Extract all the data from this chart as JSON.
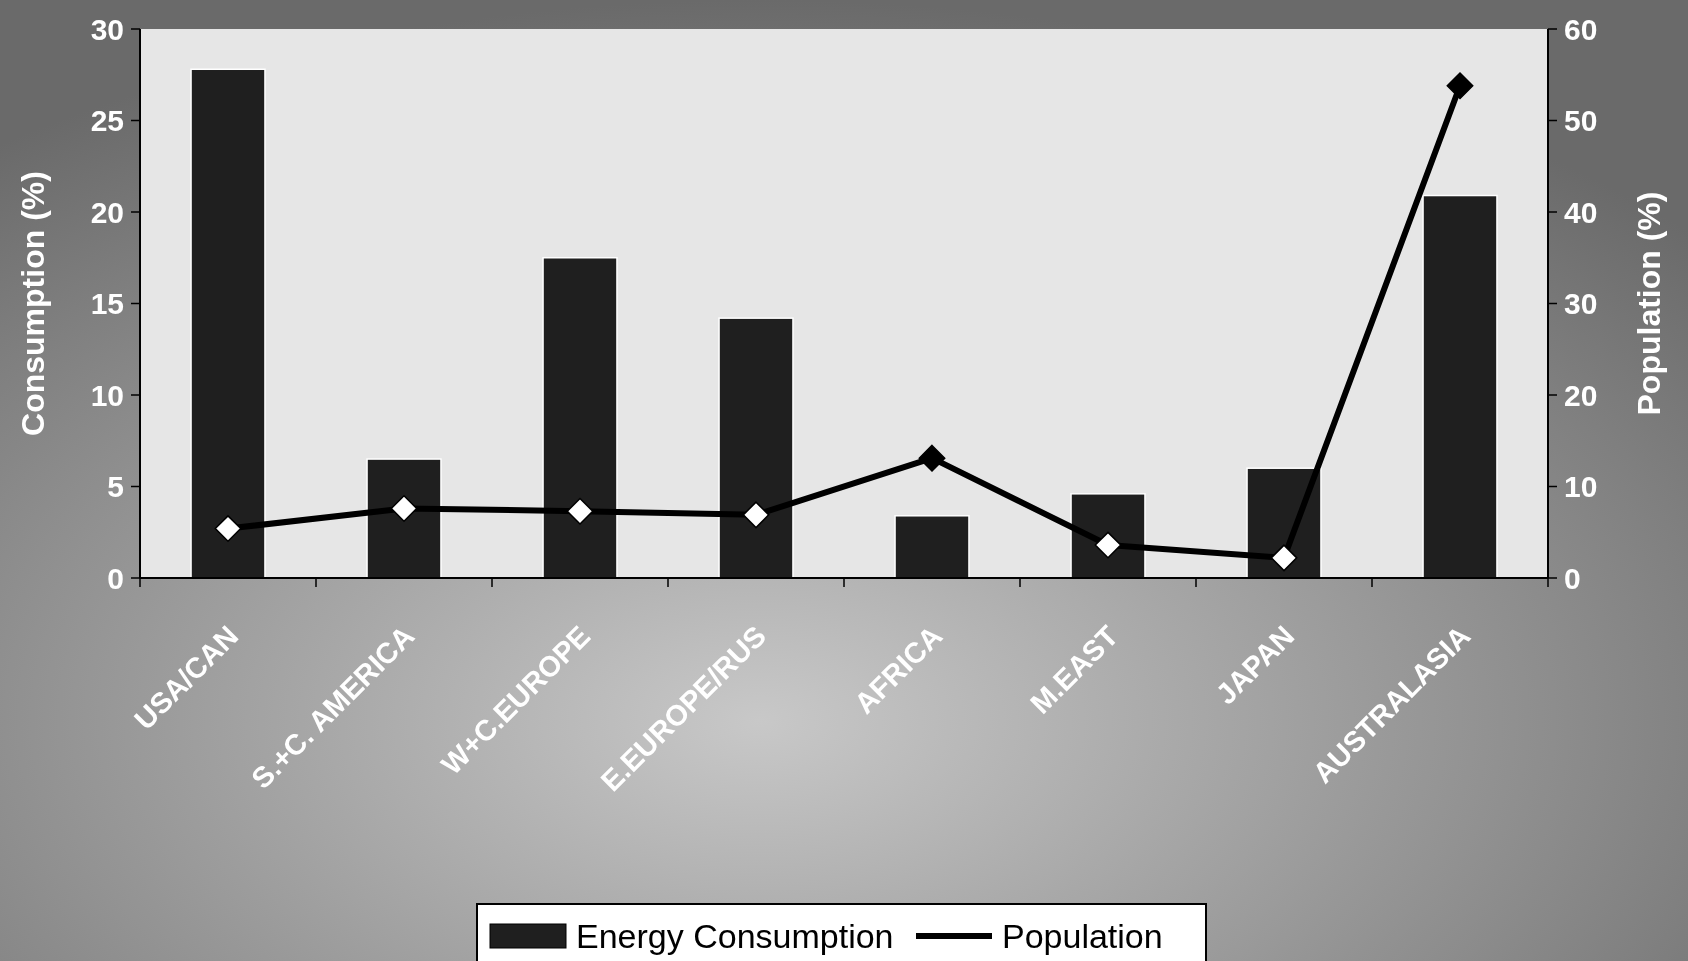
{
  "chart_data": {
    "type": "bar",
    "categories": [
      "USA/CAN",
      "S.+C. AMERICA",
      "W+C.EUROPE",
      "E.EUROPE/RUS",
      "AFRICA",
      "M.EAST",
      "JAPAN",
      "AUSTRALASIA"
    ],
    "ylabel": "Consumption (%)",
    "y2label": "Population (%)",
    "ylim": [
      0,
      30
    ],
    "yticks": [
      0,
      5,
      10,
      15,
      20,
      25,
      30
    ],
    "y2lim": [
      0,
      60
    ],
    "y2ticks": [
      0,
      10,
      20,
      30,
      40,
      50,
      60
    ],
    "legend": "bottom",
    "marker": "diamond",
    "line_style": "solid",
    "series": [
      {
        "name": "Energy Consumption",
        "color": "#1f1f1f",
        "values": [
          27.8,
          6.5,
          17.5,
          14.2,
          3.4,
          4.6,
          6.0,
          20.9
        ]
      },
      {
        "name": "Population",
        "type": "line",
        "axis": "y2",
        "color": "#000000",
        "colors": [
          "#ffffff",
          "#ffffff",
          "#ffffff",
          "#ffffff",
          "#000000",
          "#ffffff",
          "#ffffff",
          "#000000"
        ],
        "values": [
          5.4,
          7.6,
          7.3,
          6.9,
          13.1,
          3.6,
          2.2,
          53.8
        ]
      }
    ]
  }
}
